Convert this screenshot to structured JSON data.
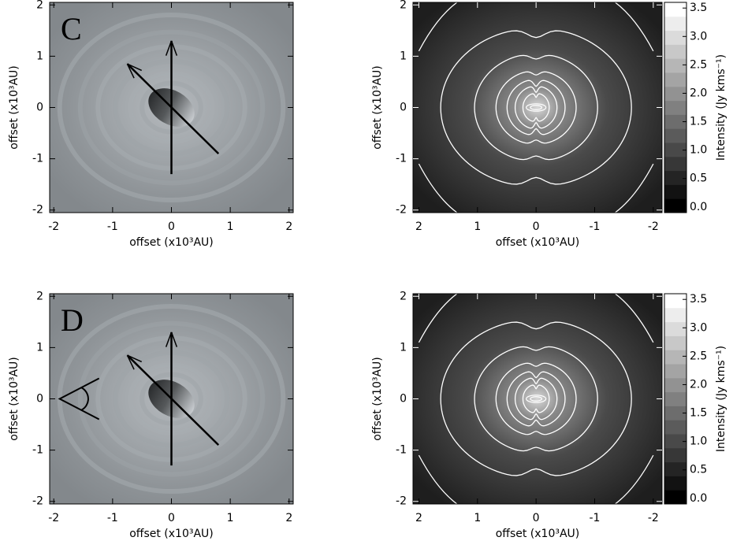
{
  "chart_data": [
    {
      "type": "image",
      "panel_label": "C",
      "xlabel": "offset (x10³AU)",
      "ylabel": "offset (x10³AU)",
      "xlim": [
        -2.07,
        2.07
      ],
      "ylim": [
        -2.05,
        2.05
      ],
      "xticks": [
        -2,
        -1,
        0,
        1,
        2
      ],
      "yticks": [
        -2,
        -1,
        0,
        1,
        2
      ]
    },
    {
      "type": "contour",
      "xlabel": "offset (x10³AU)",
      "ylabel": "offset (x10³AU)",
      "xlim": [
        2.1,
        -2.15
      ],
      "ylim": [
        -2.05,
        2.05
      ],
      "xticks": [
        2,
        1,
        0,
        -1,
        -2
      ],
      "yticks": [
        -2,
        -1,
        0,
        1,
        2
      ],
      "colorbar": {
        "label": "Intensity (Jy kms⁻¹)",
        "lim": [
          -0.1,
          3.6
        ],
        "ticks": [
          {
            "value": 0,
            "label": "0.0"
          },
          {
            "value": 0.5,
            "label": "0.5"
          },
          {
            "value": 1,
            "label": "1.0"
          },
          {
            "value": 1.5,
            "label": "1.5"
          },
          {
            "value": 2,
            "label": "2.0"
          },
          {
            "value": 2.5,
            "label": "2.5"
          },
          {
            "value": 3,
            "label": "3.0"
          },
          {
            "value": 3.5,
            "label": "3.5"
          }
        ]
      }
    },
    {
      "type": "image",
      "panel_label": "D",
      "xlabel": "offset (x10³AU)",
      "ylabel": "offset (x10³AU)",
      "xlim": [
        -2.07,
        2.07
      ],
      "ylim": [
        -2.05,
        2.05
      ],
      "xticks": [
        -2,
        -1,
        0,
        1,
        2
      ],
      "yticks": [
        -2,
        -1,
        0,
        1,
        2
      ]
    },
    {
      "type": "contour",
      "xlabel": "offset (x10³AU)",
      "ylabel": "offset (x10³AU)",
      "xlim": [
        2.1,
        -2.15
      ],
      "ylim": [
        -2.05,
        2.05
      ],
      "xticks": [
        2,
        1,
        0,
        -1,
        -2
      ],
      "yticks": [
        -2,
        -1,
        0,
        1,
        2
      ],
      "colorbar": {
        "label": "Intensity (Jy kms⁻¹)",
        "lim": [
          -0.1,
          3.6
        ],
        "ticks": [
          {
            "value": 0,
            "label": "0.0"
          },
          {
            "value": 0.5,
            "label": "0.5"
          },
          {
            "value": 1,
            "label": "1.0"
          },
          {
            "value": 1.5,
            "label": "1.5"
          },
          {
            "value": 2,
            "label": "2.0"
          },
          {
            "value": 2.5,
            "label": "2.5"
          },
          {
            "value": 3,
            "label": "3.0"
          },
          {
            "value": 3.5,
            "label": "3.5"
          }
        ]
      }
    }
  ]
}
